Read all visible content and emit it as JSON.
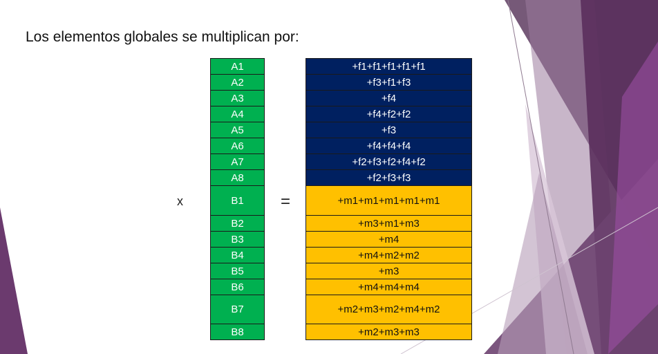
{
  "slide": {
    "title": "Los elementos globales se multiplican por:",
    "x_symbol": "x",
    "equals_symbol": "="
  },
  "colors": {
    "left_column": "#00b050",
    "f_rows": "#002060",
    "m_rows": "#ffc000",
    "decor_purple": "#6b3a6e"
  },
  "left_column": [
    "A1",
    "A2",
    "A3",
    "A4",
    "A5",
    "A6",
    "A7",
    "A8",
    "B1",
    "B2",
    "B3",
    "B4",
    "B5",
    "B6",
    "B7",
    "B8"
  ],
  "right_column": [
    "+f1+f1+f1+f1+f1",
    "+f3+f1+f3",
    "+f4",
    "+f4+f2+f2",
    "+f3",
    "+f4+f4+f4",
    "+f2+f3+f2+f4+f2",
    "+f2+f3+f3",
    "+m1+m1+m1+m1+m1",
    "+m3+m1+m3",
    "+m4",
    "+m4+m2+m2",
    "+m3",
    "+m4+m4+m4",
    "+m2+m3+m2+m4+m2",
    "+m2+m3+m3"
  ]
}
